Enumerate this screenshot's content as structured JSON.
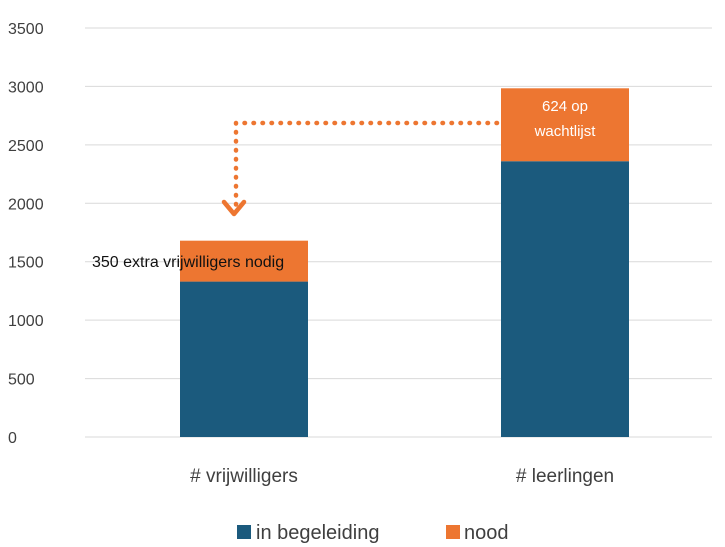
{
  "chart_data": {
    "type": "bar",
    "stacked": true,
    "categories": [
      "# vrijwilligers",
      "# leerlingen"
    ],
    "series": [
      {
        "name": "in begeleiding",
        "values": [
          1330,
          2360
        ],
        "color": "#1b5a7d"
      },
      {
        "name": "nood",
        "values": [
          350,
          624
        ],
        "color": "#ed7631"
      }
    ],
    "ylim": [
      0,
      3500
    ],
    "yticks": [
      0,
      500,
      1000,
      1500,
      2000,
      2500,
      3000,
      3500
    ],
    "grid": true,
    "legend_position": "bottom",
    "annotations": {
      "leerlingen_line1": "624 op",
      "leerlingen_line2": "wachtlijst",
      "vrijwilligers_label": "350 extra vrijwilligers nodig",
      "arrow_color": "#ed7631"
    }
  }
}
